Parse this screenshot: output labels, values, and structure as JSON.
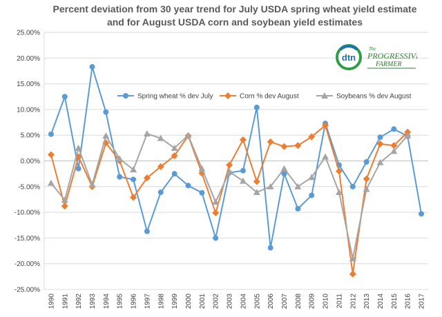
{
  "header": {
    "title_line1": "Percent deviation from 30 year trend for July USDA spring wheat yield estimate",
    "title_line2": "and for August USDA  corn and soybean yield estimates"
  },
  "logo": {
    "mark": "dtn",
    "name_top": "The",
    "name_main": "PROGRESSIVE",
    "name_sub": "FARMER"
  },
  "chart_data": {
    "type": "line",
    "title": "Percent deviation from 30 year trend for July USDA spring wheat yield estimate and for August USDA  corn and soybean yield estimates",
    "xlabel": "",
    "ylabel": "",
    "ylim": [
      -25,
      25
    ],
    "y_ticks": [
      "25.00%",
      "20.00%",
      "15.00%",
      "10.00%",
      "5.00%",
      "0.00%",
      "-5.00%",
      "-10.00%",
      "-15.00%",
      "-20.00%",
      "-25.00%"
    ],
    "categories": [
      "1990",
      "1991",
      "1992",
      "1993",
      "1994",
      "1995",
      "1996",
      "1997",
      "1998",
      "1999",
      "2000",
      "2001",
      "2002",
      "2003",
      "2004",
      "2005",
      "2006",
      "2007",
      "2008",
      "2009",
      "2010",
      "2011",
      "2012",
      "2013",
      "2014",
      "2015",
      "2016",
      "2017"
    ],
    "grid": true,
    "legend_position": "top",
    "series": [
      {
        "name": "Spring wheat % dev July",
        "color": "#5B9BD5",
        "marker": "circle",
        "values": [
          5.2,
          12.5,
          -1.5,
          18.3,
          9.5,
          -3.1,
          -3.6,
          -13.7,
          -6.1,
          -2.5,
          -4.8,
          -6.2,
          -15.0,
          -2.3,
          -1.9,
          10.4,
          -16.9,
          -2.5,
          -9.3,
          -6.7,
          7.3,
          -0.8,
          -5.0,
          -0.2,
          4.6,
          6.2,
          4.8,
          -10.3
        ]
      },
      {
        "name": "Corn % dev August",
        "color": "#ED7D31",
        "marker": "diamond",
        "values": [
          1.2,
          -8.8,
          0.8,
          -5.0,
          3.5,
          0.0,
          -7.1,
          -3.3,
          -1.1,
          1.0,
          4.9,
          -2.4,
          -10.1,
          -0.8,
          4.1,
          -4.0,
          3.7,
          2.8,
          3.0,
          4.7,
          6.9,
          -2.0,
          -22.0,
          -3.5,
          3.3,
          3.0,
          5.6,
          null
        ]
      },
      {
        "name": "Soybeans % dev August",
        "color": "#A5A5A5",
        "marker": "triangle",
        "values": [
          -4.3,
          -7.6,
          2.5,
          -4.6,
          4.9,
          0.4,
          -1.7,
          5.3,
          4.4,
          2.5,
          5.0,
          -1.5,
          -8.0,
          -2.1,
          -3.9,
          -6.1,
          -5.0,
          -1.5,
          -5.0,
          -3.2,
          0.8,
          -6.1,
          -19.0,
          -5.5,
          -0.3,
          1.9,
          4.9,
          null
        ]
      }
    ]
  }
}
